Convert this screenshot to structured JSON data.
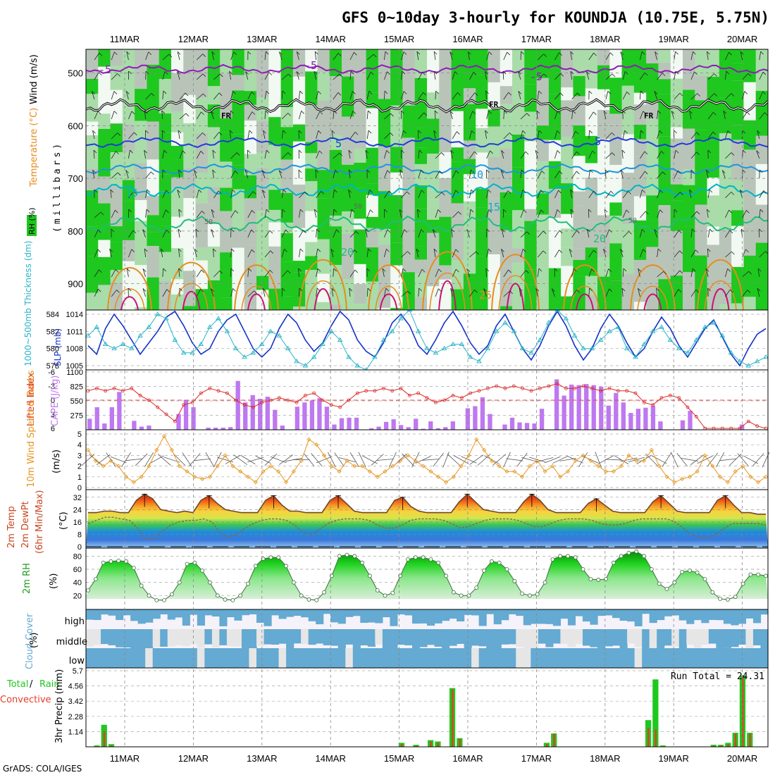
{
  "header": {
    "title": "GFS 0~10day 3-hourly for KOUNDJA (10.75E, 5.75N)",
    "credit": "GrADS: COLA/IGES"
  },
  "dates": [
    "11MAR",
    "12MAR",
    "13MAR",
    "14MAR",
    "15MAR",
    "16MAR",
    "17MAR",
    "18MAR",
    "19MAR",
    "20MAR"
  ],
  "panels": {
    "upper": {
      "label_rh": "RH (%)",
      "label_temp": "Temperature (°C)",
      "label_wind": "Wind (m/s)",
      "axis_label": "(millibars)",
      "y_ticks": [
        500,
        600,
        700,
        800,
        900
      ],
      "isotherm_labels": [
        "-5",
        "-5",
        "-5",
        "FR",
        "FR",
        "FR",
        "-5",
        "5",
        "5",
        "10",
        "15",
        "15",
        "20",
        "20",
        "25"
      ],
      "rh_labels": [
        "50",
        "50",
        "50"
      ]
    },
    "slp": {
      "label_thk": "1000~500mb Thickness (dm)",
      "label_slp": "SLP (mb)",
      "thk_ticks": [
        584,
        582,
        580,
        578
      ],
      "slp_ticks": [
        1014,
        1011,
        1008,
        1005
      ]
    },
    "cape": {
      "label_li": "Lifted Index",
      "label_cape": "CAPE (J/kg)",
      "li_ticks": [
        "-3",
        "0",
        "3",
        "6"
      ],
      "li_top": "-6",
      "cape_ticks": [
        "1100",
        "825",
        "550",
        "275"
      ]
    },
    "wind10": {
      "label": "10m Wind Speed & Barbs",
      "unit": "(m/s)",
      "ticks": [
        0,
        1,
        2,
        3,
        4,
        5
      ]
    },
    "temp2m": {
      "label_1": "2m Temp",
      "label_2": "2m DewPt",
      "label_3": "(6hr Min/Max)",
      "unit": "(°C)",
      "ticks": [
        0,
        8,
        16,
        24,
        32
      ]
    },
    "rh2m": {
      "label": "2m RH",
      "unit": "(%)",
      "ticks": [
        20,
        40,
        60,
        80
      ]
    },
    "cloud": {
      "label": "Cloud Cover",
      "unit": "(%)",
      "levels": [
        "high",
        "middle",
        "low"
      ]
    },
    "precip": {
      "label_total": "Total",
      "label_rain": "Rain",
      "label_conv": "Convective",
      "label": "3hr Precip (mm)",
      "ticks": [
        "5.7",
        "4.56",
        "3.42",
        "2.28",
        "1.14"
      ],
      "run_total": "Run Total = 24.31"
    }
  },
  "colors": {
    "rh_green": "#1ec81e",
    "rh_light": "#a9dca9",
    "rh_gray": "#b9c4b9",
    "isotherm_purple": "#8c1eb4",
    "isotherm_blue": "#1e3cdc",
    "isotherm_cyan": "#00b4c8",
    "isotherm_orange": "#e68c1e",
    "isotherm_magenta": "#c8146e",
    "slp": "#1432c8",
    "thickness": "#28b4c8",
    "cape": "#be78f0",
    "li": "#dc2828",
    "wind": "#e6961e",
    "cloud": "#64aad2",
    "precip_total": "#1ec81e",
    "precip_conv": "#e63c28"
  },
  "chart_data": [
    {
      "type": "line",
      "name": "Sea level pressure (mb)",
      "y": [
        1008.5,
        1007.0,
        1011.5,
        1014.0,
        1012.0,
        1009.5,
        1007.0,
        1009.0,
        1011.0,
        1013.5,
        1014.5,
        1012.0,
        1009.0,
        1007.0,
        1008.0,
        1011.0,
        1013.0,
        1014.0,
        1011.0,
        1008.0,
        1006.5,
        1008.0,
        1011.5,
        1014.0,
        1012.5,
        1009.5,
        1007.5,
        1009.0,
        1012.0,
        1014.5,
        1013.0,
        1009.5,
        1007.5,
        1006.5,
        1009.0,
        1012.5,
        1014.0,
        1012.0,
        1008.5,
        1007.0,
        1009.5,
        1012.5,
        1014.5,
        1012.0,
        1009.0,
        1007.0,
        1008.5,
        1012.0,
        1014.0,
        1011.0,
        1008.0,
        1006.0,
        1008.5,
        1012.0,
        1014.5,
        1012.0,
        1008.5,
        1006.0,
        1008.0,
        1011.5,
        1014.0,
        1012.0,
        1009.0,
        1006.5,
        1008.0,
        1011.0,
        1013.5,
        1011.5,
        1008.5,
        1006.5,
        1009.0,
        1011.5,
        1013.0,
        1010.0,
        1007.0,
        1005.0,
        1008.0,
        1010.5,
        1011.5
      ]
    },
    {
      "type": "line",
      "name": "1000~500mb thickness (dm)",
      "y": [
        581.5,
        582.5,
        580.5,
        580.0,
        580.5,
        580.0,
        581.5,
        582.5,
        584.0,
        583.5,
        581.0,
        579.5,
        579.5,
        580.5,
        582.5,
        583.5,
        582.0,
        580.0,
        579.0,
        579.5,
        580.5,
        582.0,
        581.5,
        580.0,
        578.5,
        578.0,
        579.0,
        580.5,
        582.0,
        581.0,
        579.0,
        578.0,
        577.5,
        579.0,
        581.0,
        582.0,
        583.5,
        584.5,
        582.0,
        580.0,
        579.5,
        580.0,
        580.5,
        580.5,
        579.0,
        578.5,
        580.0,
        582.0,
        583.0,
        582.0,
        580.0,
        579.5,
        581.0,
        583.0,
        584.5,
        583.5,
        581.5,
        580.0,
        580.0,
        581.0,
        582.0,
        582.5,
        580.0,
        579.0,
        580.5,
        582.0,
        582.5,
        581.0,
        580.0,
        579.5,
        581.0,
        582.5,
        583.0,
        581.5,
        579.5,
        578.5,
        578.0,
        578.5,
        579.0
      ]
    },
    {
      "type": "bar",
      "name": "CAPE (J/kg)",
      "y": [
        210,
        430,
        120,
        430,
        720,
        0,
        170,
        60,
        80,
        0,
        0,
        0,
        300,
        570,
        430,
        0,
        40,
        40,
        40,
        50,
        930,
        520,
        660,
        590,
        630,
        380,
        80,
        0,
        440,
        520,
        560,
        600,
        440,
        100,
        220,
        230,
        230,
        0,
        30,
        60,
        150,
        200,
        90,
        50,
        210,
        20,
        160,
        30,
        50,
        160,
        0,
        410,
        450,
        620,
        300,
        0,
        100,
        230,
        140,
        130,
        120,
        400,
        0,
        960,
        650,
        860,
        850,
        870,
        850,
        820,
        460,
        700,
        520,
        320,
        400,
        420,
        460,
        160,
        0,
        0,
        180,
        360,
        0,
        0,
        0,
        0,
        0,
        0,
        100,
        0,
        0,
        0
      ]
    },
    {
      "type": "line",
      "name": "Lifted Index",
      "y": [
        -2.0,
        -2.5,
        -2.0,
        -2.5,
        -2.0,
        -2.5,
        -1.0,
        0.0,
        1.5,
        3.0,
        4.5,
        1.0,
        0.5,
        -1.5,
        -2.5,
        -2.0,
        -1.5,
        0.0,
        1.0,
        1.5,
        0.5,
        0.0,
        -0.5,
        0.0,
        0.5,
        -1.0,
        -1.5,
        0.0,
        1.0,
        1.5,
        0.0,
        -1.5,
        -2.0,
        -2.0,
        -2.5,
        -2.0,
        -2.5,
        -1.0,
        -1.5,
        -0.5,
        0.5,
        0.0,
        -1.0,
        -0.5,
        -1.5,
        -2.0,
        -2.5,
        -3.0,
        -2.5,
        -3.0,
        -2.5,
        -2.0,
        -2.5,
        -3.0,
        -3.5,
        -2.5,
        -2.5,
        -3.0,
        -2.5,
        -2.0,
        -2.5,
        -2.0,
        -2.0,
        -1.5,
        0.5,
        1.0,
        -0.5,
        -1.0,
        -0.5,
        1.5,
        3.5,
        6.0,
        6.0,
        6.0,
        6.0,
        6.0,
        4.5,
        5.5,
        6.0
      ]
    },
    {
      "type": "line",
      "name": "10m wind speed (m/s)",
      "y": [
        3.5,
        2.5,
        2.0,
        2.5,
        2.0,
        1.0,
        0.5,
        1.0,
        2.0,
        3.5,
        4.8,
        3.5,
        2.0,
        1.5,
        1.0,
        0.8,
        1.0,
        2.0,
        3.0,
        2.0,
        1.5,
        1.0,
        0.5,
        1.5,
        2.0,
        1.5,
        0.5,
        1.5,
        2.5,
        4.5,
        4.0,
        3.0,
        2.0,
        1.5,
        2.5,
        2.0,
        2.0,
        1.5,
        1.0,
        1.5,
        2.0,
        2.5,
        3.0,
        2.5,
        2.0,
        1.5,
        1.0,
        0.5,
        1.0,
        2.0,
        3.0,
        4.5,
        3.5,
        2.5,
        2.0,
        1.5,
        1.5,
        1.0,
        2.0,
        2.5,
        1.5,
        2.0,
        1.0,
        1.5,
        2.5,
        3.0,
        2.5,
        2.0,
        1.5,
        1.5,
        2.0,
        3.0,
        2.5,
        2.5,
        3.5,
        2.0,
        1.0,
        0.5,
        0.8,
        1.0,
        1.5,
        3.0,
        2.0,
        1.0,
        0.5,
        1.5,
        2.0,
        1.0,
        0.5,
        1.0
      ]
    },
    {
      "type": "line",
      "name": "2m temperature (°C)",
      "y": [
        22,
        22,
        23,
        23,
        22,
        22,
        30,
        34,
        31,
        24,
        23,
        22,
        23,
        22,
        30,
        33,
        28,
        24,
        23,
        22,
        22,
        22,
        30,
        33,
        27,
        23,
        23,
        22,
        22,
        22,
        30,
        33,
        28,
        23,
        22,
        22,
        22,
        22,
        30,
        32,
        26,
        23,
        22,
        22,
        22,
        22,
        29,
        34,
        29,
        24,
        23,
        22,
        22,
        22,
        29,
        34,
        30,
        24,
        22,
        22,
        22,
        22,
        28,
        31,
        27,
        23,
        22,
        22,
        22,
        22,
        29,
        33,
        28,
        23,
        22,
        22,
        22,
        22,
        30,
        33,
        27,
        22,
        22,
        21,
        21
      ]
    },
    {
      "type": "line",
      "name": "2m dew point (°C)",
      "y": [
        15,
        17,
        19,
        19,
        18,
        17,
        12,
        5,
        5,
        10,
        14,
        16,
        17,
        17,
        18,
        16,
        9,
        6,
        8,
        12,
        15,
        17,
        18,
        18,
        17,
        14,
        9,
        8,
        11,
        15,
        17,
        18,
        18,
        18,
        17,
        14,
        12,
        12,
        14,
        17,
        18,
        18,
        18,
        17,
        15,
        12,
        13,
        15,
        17,
        18,
        18,
        18,
        17,
        15,
        13,
        13,
        15,
        17,
        18,
        18,
        18,
        17,
        15,
        14,
        14,
        15,
        17,
        18,
        18,
        18,
        18,
        16,
        12,
        8,
        6,
        6,
        8,
        12,
        15,
        15,
        15,
        15,
        14
      ]
    },
    {
      "type": "area",
      "name": "2m relative humidity (%)",
      "y": [
        28,
        45,
        70,
        72,
        73,
        72,
        62,
        35,
        20,
        13,
        13,
        22,
        40,
        68,
        70,
        58,
        40,
        20,
        14,
        13,
        20,
        38,
        65,
        76,
        78,
        78,
        65,
        40,
        20,
        14,
        13,
        25,
        50,
        80,
        82,
        80,
        70,
        50,
        28,
        20,
        24,
        50,
        75,
        78,
        78,
        75,
        70,
        50,
        25,
        20,
        20,
        32,
        58,
        72,
        70,
        60,
        42,
        23,
        20,
        22,
        40,
        75,
        80,
        80,
        78,
        60,
        45,
        44,
        45,
        70,
        80,
        85,
        87,
        80,
        60,
        38,
        30,
        40,
        56,
        58,
        55,
        45,
        25,
        15,
        14,
        18,
        38,
        52,
        52,
        50
      ]
    },
    {
      "type": "bar",
      "name": "3hr precip total (mm)",
      "y": [
        0,
        0.1,
        1.65,
        0.2,
        0,
        0,
        0,
        0,
        0,
        0,
        0,
        0,
        0,
        0,
        0,
        0,
        0,
        0,
        0,
        0,
        0,
        0,
        0,
        0,
        0,
        0,
        0,
        0,
        0,
        0,
        0,
        0,
        0,
        0,
        0,
        0,
        0,
        0,
        0,
        0,
        0,
        0,
        0,
        0.3,
        0,
        0.15,
        0,
        0.5,
        0.4,
        0,
        4.4,
        0.65,
        0,
        0,
        0,
        0,
        0,
        0,
        0,
        0,
        0,
        0,
        0,
        0.3,
        1.0,
        0,
        0,
        0,
        0,
        0,
        0,
        0,
        0,
        0,
        0,
        0,
        0,
        2.0,
        5.05,
        0.1,
        0,
        0,
        0,
        0,
        0,
        0,
        0.15,
        0.15,
        0.3,
        1.05,
        5.35,
        1.05,
        0,
        0
      ]
    },
    {
      "type": "bar",
      "name": "3hr precip convective (mm)",
      "y": [
        0,
        0.05,
        1.15,
        0.1,
        0,
        0,
        0,
        0,
        0,
        0,
        0,
        0,
        0,
        0,
        0,
        0,
        0,
        0,
        0,
        0,
        0,
        0,
        0,
        0,
        0,
        0,
        0,
        0,
        0,
        0,
        0,
        0,
        0,
        0,
        0,
        0,
        0,
        0,
        0,
        0,
        0,
        0,
        0,
        0.2,
        0,
        0.1,
        0,
        0.4,
        0.3,
        0,
        4.3,
        0.6,
        0,
        0,
        0,
        0,
        0,
        0,
        0,
        0,
        0,
        0,
        0,
        0.2,
        1.0,
        0,
        0,
        0,
        0,
        0,
        0,
        0,
        0,
        0,
        0,
        0,
        0,
        1.4,
        1.3,
        0.05,
        0,
        0,
        0,
        0,
        0,
        0,
        0.1,
        0.1,
        0.2,
        1.0,
        5.2,
        1.0,
        0,
        0
      ]
    }
  ]
}
